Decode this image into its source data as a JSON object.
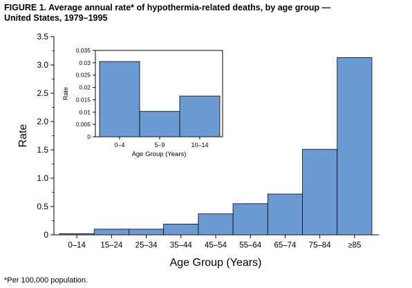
{
  "figure": {
    "title_line1": "FIGURE 1. Average annual rate* of hypothermia-related deaths, by age group —",
    "title_line2": "United States, 1979–1995",
    "footnote": "*Per 100,000 population."
  },
  "colors": {
    "bar_fill": "#6b9bd2",
    "bar_stroke": "#000000",
    "axis": "#000000"
  },
  "chart_data": [
    {
      "type": "bar",
      "title": "",
      "xlabel": "Age Group (Years)",
      "ylabel": "Rate",
      "categories": [
        "0–14",
        "15–24",
        "25–34",
        "35–44",
        "45–54",
        "55–64",
        "65–74",
        "75–84",
        "≥85"
      ],
      "values": [
        0.02,
        0.1,
        0.1,
        0.19,
        0.37,
        0.55,
        0.72,
        1.51,
        3.13
      ],
      "ylim": [
        0,
        3.5
      ],
      "yticks": [
        "0",
        "0.5",
        "1.0",
        "1.5",
        "2.0",
        "2.5",
        "3.0",
        "3.5"
      ],
      "grid": false,
      "legend": "none"
    },
    {
      "type": "bar",
      "title": "",
      "xlabel": "Age Group (Years)",
      "ylabel": "Rate",
      "categories": [
        "0–4",
        "5–9",
        "10–14"
      ],
      "values": [
        0.0305,
        0.0103,
        0.0165
      ],
      "ylim": [
        0,
        0.035
      ],
      "yticks": [
        "0",
        "0.005",
        "0.01",
        "0.015",
        "0.02",
        "0.025",
        "0.03",
        "0.035"
      ],
      "grid": false,
      "legend": "none"
    }
  ]
}
